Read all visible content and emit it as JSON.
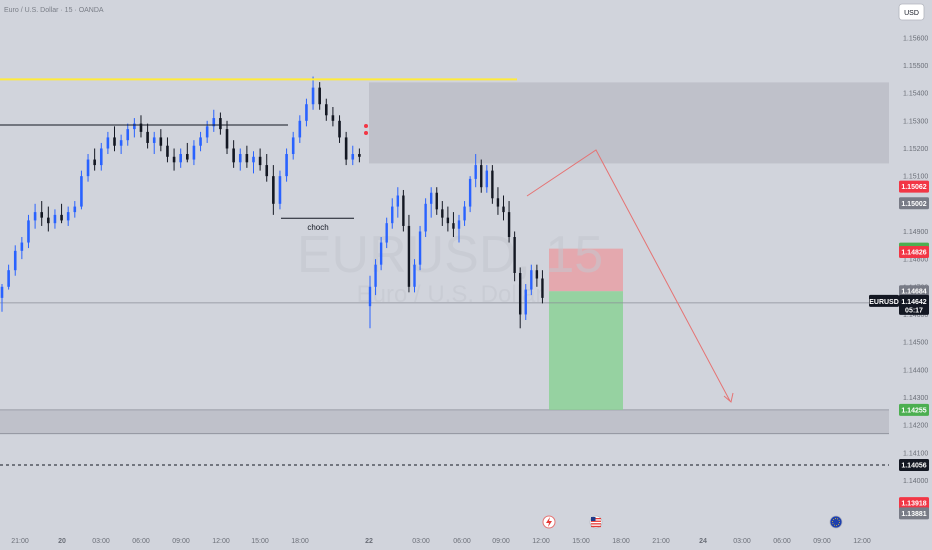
{
  "header": {
    "symbol_desc": "Euro / U.S. Dollar · 15 · OANDA",
    "currency_button": "USD"
  },
  "watermark": {
    "ticker": "EURUSD, 15",
    "name": "Euro / U.S. Dollar"
  },
  "annotations": {
    "choch": "choch"
  },
  "colors": {
    "up": "#2962ff",
    "down": "#131722",
    "yellow": "#ffeb3b",
    "zone": "#b8bbc4",
    "sl": "#e8a0a6",
    "tp": "#8fd19a",
    "arrow": "#e57373",
    "red_tag": "#f23645",
    "green_tag": "#4caf50",
    "grey_tag": "#787b86",
    "dark_tag": "#131722"
  },
  "icons": {
    "event_1": "earnings-icon",
    "event_2": "us-flag-icon",
    "event_3": "eu-flag-icon"
  },
  "chart_data": {
    "type": "candlestick",
    "title": "Euro / U.S. Dollar · 15 · OANDA",
    "ylim": [
      1.1381,
      1.1565
    ],
    "y_ticks": [
      "1.15600",
      "1.15500",
      "1.15400",
      "1.15300",
      "1.15200",
      "1.15100",
      "1.15000",
      "1.14900",
      "1.14800",
      "1.14700",
      "1.14600",
      "1.14500",
      "1.14400",
      "1.14300",
      "1.14200",
      "1.14100",
      "1.14000"
    ],
    "x_ticks": [
      "21:00",
      "20",
      "03:00",
      "06:00",
      "09:00",
      "12:00",
      "15:00",
      "18:00",
      "22",
      "03:00",
      "06:00",
      "09:00",
      "12:00",
      "15:00",
      "18:00",
      "21:00",
      "24",
      "03:00",
      "06:00",
      "09:00",
      "12:00"
    ],
    "price_tags": [
      {
        "label": "1.15062",
        "value": 1.15062,
        "style": "red"
      },
      {
        "label": "1.15002",
        "value": 1.15002,
        "style": "grey"
      },
      {
        "label": "1.14838",
        "value": 1.14838,
        "style": "green"
      },
      {
        "label": "1.14826",
        "value": 1.14826,
        "style": "red"
      },
      {
        "label": "1.14684",
        "value": 1.14684,
        "style": "grey"
      },
      {
        "label": "1.14255",
        "value": 1.14255,
        "style": "green"
      },
      {
        "label": "1.14056",
        "value": 1.14056,
        "style": "dark"
      },
      {
        "label": "1.13918",
        "value": 1.13918,
        "style": "red"
      },
      {
        "label": "1.13881",
        "value": 1.13881,
        "style": "grey"
      }
    ],
    "current": {
      "symbol": "EURUSD",
      "price": "1.14642",
      "countdown": "05:17",
      "value": 1.14642
    },
    "levels": {
      "yellow_high": 1.1545,
      "black_high": 1.15285,
      "black_low": 1.14948,
      "sell_zone": [
        1.15146,
        1.15439
      ],
      "demand_zone": [
        1.14169,
        1.14255
      ],
      "dashed": 1.14056,
      "current_line": 1.14642
    },
    "position": {
      "entry": 1.14684,
      "stop": 1.14838,
      "target": 1.14255
    },
    "candles": [
      {
        "o": 1.1466,
        "h": 1.1471,
        "l": 1.1461,
        "c": 1.147
      },
      {
        "o": 1.147,
        "h": 1.1478,
        "l": 1.1469,
        "c": 1.1476
      },
      {
        "o": 1.1476,
        "h": 1.1485,
        "l": 1.1474,
        "c": 1.1483
      },
      {
        "o": 1.1483,
        "h": 1.1488,
        "l": 1.148,
        "c": 1.1486
      },
      {
        "o": 1.1486,
        "h": 1.1496,
        "l": 1.1484,
        "c": 1.1494
      },
      {
        "o": 1.1494,
        "h": 1.15,
        "l": 1.1491,
        "c": 1.1497
      },
      {
        "o": 1.1497,
        "h": 1.1501,
        "l": 1.1492,
        "c": 1.1495
      },
      {
        "o": 1.1495,
        "h": 1.1499,
        "l": 1.149,
        "c": 1.1493
      },
      {
        "o": 1.1493,
        "h": 1.1498,
        "l": 1.1491,
        "c": 1.1496
      },
      {
        "o": 1.1496,
        "h": 1.15,
        "l": 1.1493,
        "c": 1.1494
      },
      {
        "o": 1.1494,
        "h": 1.1499,
        "l": 1.1492,
        "c": 1.1497
      },
      {
        "o": 1.1497,
        "h": 1.1501,
        "l": 1.1495,
        "c": 1.1499
      },
      {
        "o": 1.1499,
        "h": 1.1512,
        "l": 1.1498,
        "c": 1.151
      },
      {
        "o": 1.151,
        "h": 1.1518,
        "l": 1.1508,
        "c": 1.1516
      },
      {
        "o": 1.1516,
        "h": 1.152,
        "l": 1.1512,
        "c": 1.1514
      },
      {
        "o": 1.1514,
        "h": 1.1522,
        "l": 1.1512,
        "c": 1.152
      },
      {
        "o": 1.152,
        "h": 1.1526,
        "l": 1.1518,
        "c": 1.1524
      },
      {
        "o": 1.1524,
        "h": 1.1528,
        "l": 1.1519,
        "c": 1.1521
      },
      {
        "o": 1.1521,
        "h": 1.1525,
        "l": 1.1518,
        "c": 1.1523
      },
      {
        "o": 1.1523,
        "h": 1.1529,
        "l": 1.1521,
        "c": 1.1527
      },
      {
        "o": 1.1527,
        "h": 1.1531,
        "l": 1.1524,
        "c": 1.1529
      },
      {
        "o": 1.1529,
        "h": 1.1532,
        "l": 1.1524,
        "c": 1.1526
      },
      {
        "o": 1.1526,
        "h": 1.1529,
        "l": 1.152,
        "c": 1.1522
      },
      {
        "o": 1.1522,
        "h": 1.1526,
        "l": 1.1518,
        "c": 1.1524
      },
      {
        "o": 1.1524,
        "h": 1.1527,
        "l": 1.1519,
        "c": 1.1521
      },
      {
        "o": 1.1521,
        "h": 1.1524,
        "l": 1.1515,
        "c": 1.1517
      },
      {
        "o": 1.1517,
        "h": 1.152,
        "l": 1.1512,
        "c": 1.1515
      },
      {
        "o": 1.1515,
        "h": 1.152,
        "l": 1.1513,
        "c": 1.1518
      },
      {
        "o": 1.1518,
        "h": 1.1522,
        "l": 1.1515,
        "c": 1.1516
      },
      {
        "o": 1.1516,
        "h": 1.1523,
        "l": 1.1514,
        "c": 1.1521
      },
      {
        "o": 1.1521,
        "h": 1.1526,
        "l": 1.1519,
        "c": 1.1524
      },
      {
        "o": 1.1524,
        "h": 1.153,
        "l": 1.1522,
        "c": 1.1528
      },
      {
        "o": 1.1528,
        "h": 1.1534,
        "l": 1.1526,
        "c": 1.1531
      },
      {
        "o": 1.1531,
        "h": 1.1533,
        "l": 1.1525,
        "c": 1.1527
      },
      {
        "o": 1.1527,
        "h": 1.153,
        "l": 1.1518,
        "c": 1.152
      },
      {
        "o": 1.152,
        "h": 1.1523,
        "l": 1.1513,
        "c": 1.1515
      },
      {
        "o": 1.1515,
        "h": 1.152,
        "l": 1.1512,
        "c": 1.1518
      },
      {
        "o": 1.1518,
        "h": 1.1521,
        "l": 1.1513,
        "c": 1.1515
      },
      {
        "o": 1.1515,
        "h": 1.1519,
        "l": 1.1511,
        "c": 1.1517
      },
      {
        "o": 1.1517,
        "h": 1.152,
        "l": 1.1512,
        "c": 1.1514
      },
      {
        "o": 1.1514,
        "h": 1.1518,
        "l": 1.1508,
        "c": 1.151
      },
      {
        "o": 1.151,
        "h": 1.1514,
        "l": 1.1496,
        "c": 1.15
      },
      {
        "o": 1.15,
        "h": 1.1512,
        "l": 1.1498,
        "c": 1.151
      },
      {
        "o": 1.151,
        "h": 1.152,
        "l": 1.1508,
        "c": 1.1518
      },
      {
        "o": 1.1518,
        "h": 1.1526,
        "l": 1.1516,
        "c": 1.1524
      },
      {
        "o": 1.1524,
        "h": 1.1532,
        "l": 1.1522,
        "c": 1.153
      },
      {
        "o": 1.153,
        "h": 1.1538,
        "l": 1.1528,
        "c": 1.1536
      },
      {
        "o": 1.1536,
        "h": 1.1546,
        "l": 1.1534,
        "c": 1.1542
      },
      {
        "o": 1.1542,
        "h": 1.1544,
        "l": 1.1534,
        "c": 1.1536
      },
      {
        "o": 1.1536,
        "h": 1.1538,
        "l": 1.153,
        "c": 1.1532
      },
      {
        "o": 1.1532,
        "h": 1.1535,
        "l": 1.1528,
        "c": 1.153
      },
      {
        "o": 1.153,
        "h": 1.1532,
        "l": 1.1522,
        "c": 1.1524
      },
      {
        "o": 1.1524,
        "h": 1.1526,
        "l": 1.1514,
        "c": 1.1516
      },
      {
        "o": 1.1516,
        "h": 1.1521,
        "l": 1.1514,
        "c": 1.1518
      },
      {
        "o": 1.1518,
        "h": 1.152,
        "l": 1.1515,
        "c": 1.1517
      },
      {
        "o": 1.1463,
        "h": 1.1474,
        "l": 1.1455,
        "c": 1.147
      },
      {
        "o": 1.147,
        "h": 1.148,
        "l": 1.1467,
        "c": 1.1478
      },
      {
        "o": 1.1478,
        "h": 1.1488,
        "l": 1.1476,
        "c": 1.1486
      },
      {
        "o": 1.1486,
        "h": 1.1495,
        "l": 1.1484,
        "c": 1.1493
      },
      {
        "o": 1.1493,
        "h": 1.1502,
        "l": 1.1491,
        "c": 1.1499
      },
      {
        "o": 1.1499,
        "h": 1.1506,
        "l": 1.1495,
        "c": 1.1503
      },
      {
        "o": 1.1503,
        "h": 1.1505,
        "l": 1.149,
        "c": 1.1492
      },
      {
        "o": 1.1492,
        "h": 1.1496,
        "l": 1.1468,
        "c": 1.147
      },
      {
        "o": 1.147,
        "h": 1.148,
        "l": 1.1468,
        "c": 1.1478
      },
      {
        "o": 1.1478,
        "h": 1.1492,
        "l": 1.1476,
        "c": 1.149
      },
      {
        "o": 1.149,
        "h": 1.1502,
        "l": 1.1488,
        "c": 1.15
      },
      {
        "o": 1.15,
        "h": 1.1506,
        "l": 1.1495,
        "c": 1.1504
      },
      {
        "o": 1.1504,
        "h": 1.1506,
        "l": 1.1496,
        "c": 1.1498
      },
      {
        "o": 1.1498,
        "h": 1.1501,
        "l": 1.1492,
        "c": 1.1495
      },
      {
        "o": 1.1495,
        "h": 1.1499,
        "l": 1.149,
        "c": 1.1493
      },
      {
        "o": 1.1493,
        "h": 1.1497,
        "l": 1.1488,
        "c": 1.1491
      },
      {
        "o": 1.1491,
        "h": 1.1496,
        "l": 1.1486,
        "c": 1.1494
      },
      {
        "o": 1.1494,
        "h": 1.1501,
        "l": 1.1492,
        "c": 1.1499
      },
      {
        "o": 1.1499,
        "h": 1.151,
        "l": 1.1497,
        "c": 1.1509
      },
      {
        "o": 1.1509,
        "h": 1.1518,
        "l": 1.1506,
        "c": 1.1514
      },
      {
        "o": 1.1514,
        "h": 1.1516,
        "l": 1.1504,
        "c": 1.1506
      },
      {
        "o": 1.1506,
        "h": 1.1514,
        "l": 1.1504,
        "c": 1.1512
      },
      {
        "o": 1.1512,
        "h": 1.1514,
        "l": 1.15,
        "c": 1.1502
      },
      {
        "o": 1.1502,
        "h": 1.1506,
        "l": 1.1496,
        "c": 1.1499
      },
      {
        "o": 1.1499,
        "h": 1.1503,
        "l": 1.1494,
        "c": 1.1497
      },
      {
        "o": 1.1497,
        "h": 1.1501,
        "l": 1.1486,
        "c": 1.1488
      },
      {
        "o": 1.1488,
        "h": 1.149,
        "l": 1.1472,
        "c": 1.1475
      },
      {
        "o": 1.1475,
        "h": 1.1477,
        "l": 1.1455,
        "c": 1.146
      },
      {
        "o": 1.146,
        "h": 1.1471,
        "l": 1.1458,
        "c": 1.1469
      },
      {
        "o": 1.1469,
        "h": 1.1478,
        "l": 1.1467,
        "c": 1.1476
      },
      {
        "o": 1.1476,
        "h": 1.1478,
        "l": 1.147,
        "c": 1.1473
      },
      {
        "o": 1.1473,
        "h": 1.1476,
        "l": 1.1464,
        "c": 1.1466
      }
    ]
  }
}
